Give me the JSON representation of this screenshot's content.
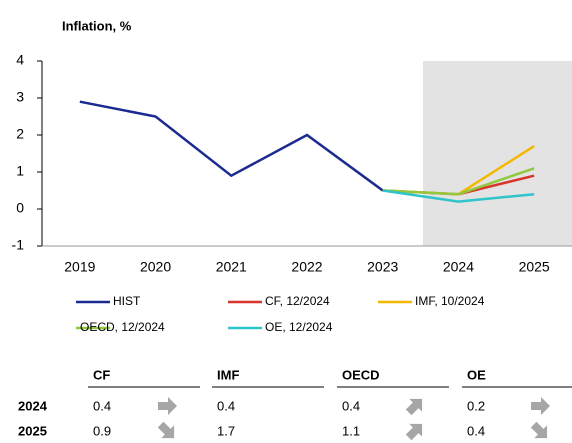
{
  "chart_data": {
    "type": "line",
    "title": "Inflation, %",
    "categories": [
      "2019",
      "2020",
      "2021",
      "2022",
      "2023",
      "2024",
      "2025"
    ],
    "series": [
      {
        "name": "HIST",
        "color": "#1b2a90",
        "values": [
          2.9,
          2.5,
          0.9,
          2.0,
          0.5,
          null,
          null
        ]
      },
      {
        "name": "CF, 12/2024",
        "color": "#d9342b",
        "values": [
          null,
          null,
          null,
          null,
          0.5,
          0.4,
          0.9
        ]
      },
      {
        "name": "IMF, 10/2024",
        "color": "#f5b800",
        "values": [
          null,
          null,
          null,
          null,
          0.5,
          0.4,
          1.7
        ]
      },
      {
        "name": "OECD, 12/2024",
        "color": "#92c83e",
        "values": [
          null,
          null,
          null,
          null,
          0.5,
          0.4,
          1.1
        ]
      },
      {
        "name": "OE, 12/2024",
        "color": "#2ec4c9",
        "values": [
          null,
          null,
          null,
          null,
          0.5,
          0.2,
          0.4
        ]
      }
    ],
    "ylim": [
      -1,
      4
    ],
    "yticks": [
      -1,
      0,
      1,
      2,
      3,
      4
    ],
    "grid": false
  },
  "table": {
    "columns": [
      "CF",
      "IMF",
      "OECD",
      "OE"
    ],
    "rows": [
      {
        "label": "2024",
        "values": [
          0.4,
          0.4,
          0.4,
          0.2
        ]
      },
      {
        "label": "2025",
        "values": [
          0.9,
          1.7,
          1.1,
          0.4
        ]
      }
    ]
  }
}
